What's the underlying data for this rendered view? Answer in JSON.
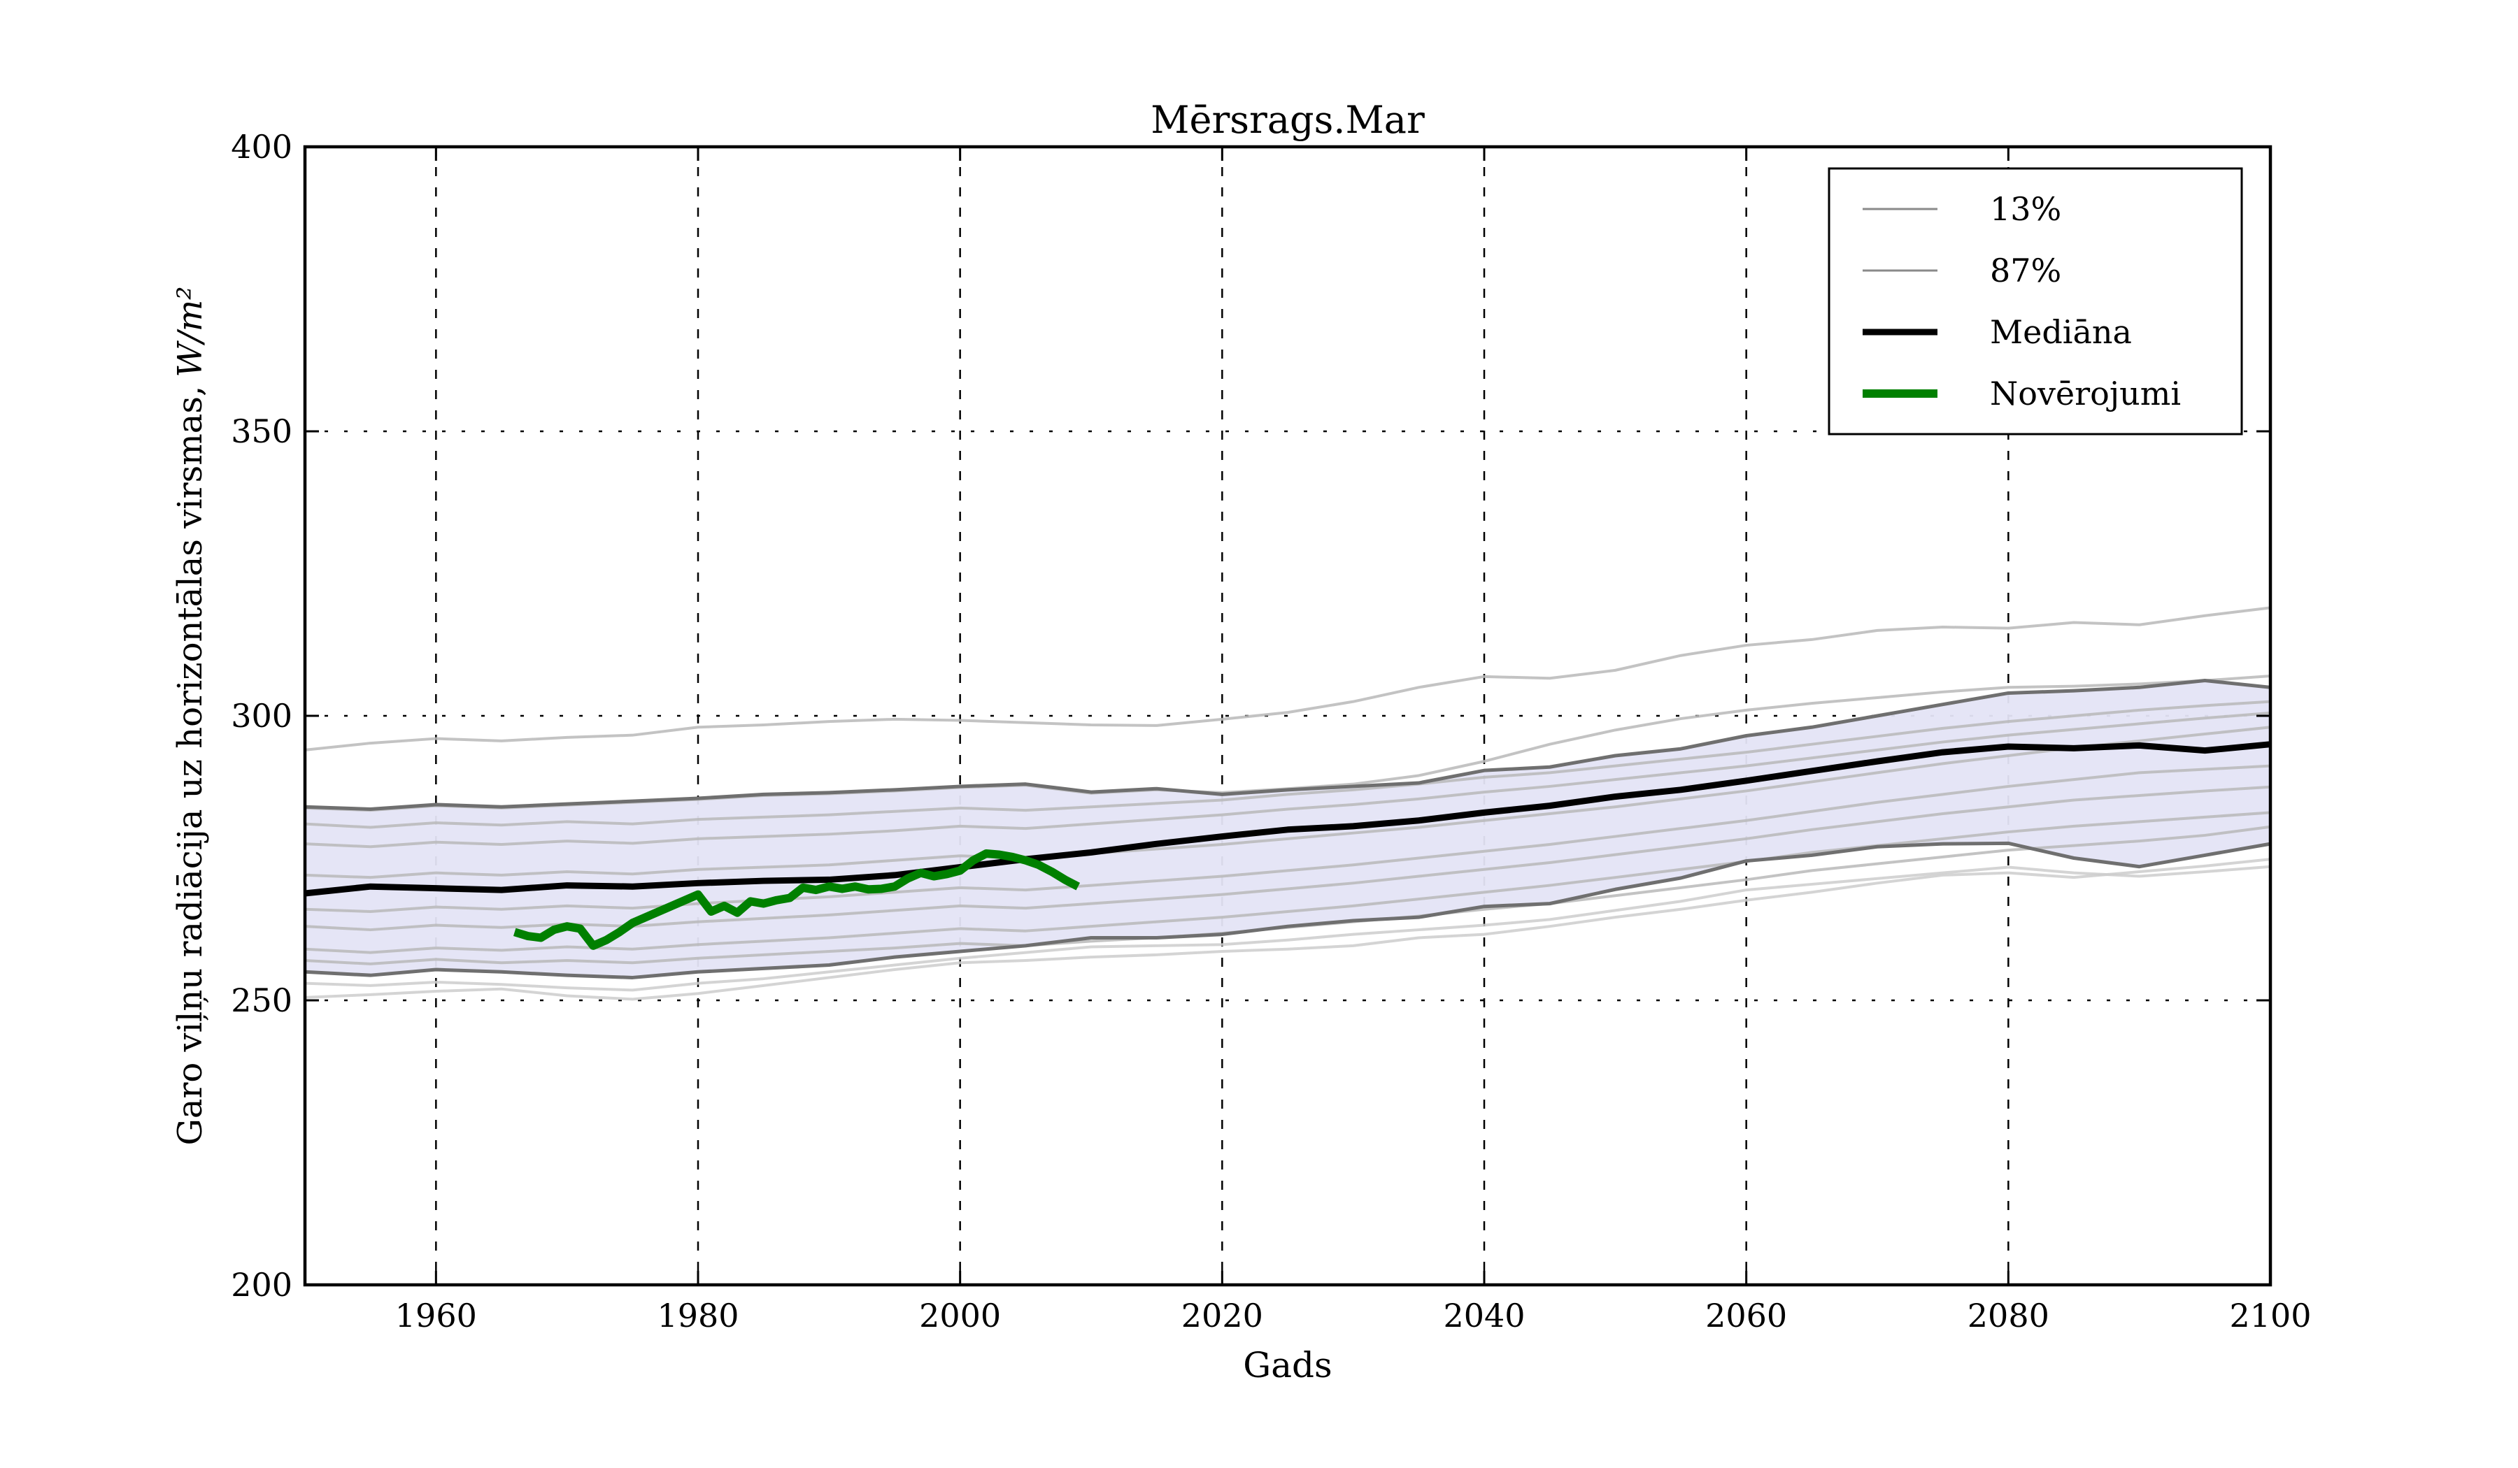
{
  "page": {
    "background": "#ffffff"
  },
  "chart_data": {
    "type": "line",
    "title": "Mērsrags.Mar",
    "xlabel": "Gads",
    "ylabel": "Garo viļņu radiācija uz horizontālas virsmas,",
    "ylabel_math": "W/m²",
    "xlim": [
      1950,
      2100
    ],
    "ylim": [
      200,
      400
    ],
    "x_ticks": [
      1960,
      1980,
      2000,
      2020,
      2040,
      2060,
      2080,
      2100
    ],
    "y_ticks": [
      200,
      250,
      300,
      350,
      400
    ],
    "grid": true,
    "legend_position": "upper right",
    "colors": {
      "band_fill": "#e4e4f6",
      "band_edge": "#6f6f6f",
      "ensemble": "#b9b9b9",
      "ensemble_light": "#cccccc",
      "median": "#000000",
      "observations": "#008000",
      "legend_percentile": "#8a8a8a",
      "grid_line": "#000000",
      "axis": "#000000"
    },
    "model_years": [
      1950,
      1955,
      1960,
      1965,
      1970,
      1975,
      1980,
      1985,
      1990,
      1995,
      2000,
      2005,
      2010,
      2015,
      2020,
      2025,
      2030,
      2035,
      2040,
      2045,
      2050,
      2055,
      2060,
      2065,
      2070,
      2075,
      2080,
      2085,
      2090,
      2095,
      2100
    ],
    "percentile_87": [
      284.0,
      283.6,
      284.4,
      284.0,
      284.5,
      285.0,
      285.5,
      286.2,
      286.5,
      287.0,
      287.6,
      288.0,
      286.6,
      287.2,
      286.2,
      287.0,
      287.6,
      288.2,
      290.4,
      291.0,
      293.0,
      294.2,
      296.5,
      298.0,
      300.0,
      302.0,
      304.0,
      304.4,
      305.0,
      306.2,
      305.0
    ],
    "percentile_13": [
      255.0,
      254.4,
      255.4,
      255.0,
      254.4,
      254.0,
      255.0,
      255.6,
      256.2,
      257.6,
      258.6,
      259.6,
      261.0,
      261.0,
      261.6,
      263.0,
      264.0,
      264.6,
      266.5,
      267.0,
      269.5,
      271.5,
      274.5,
      275.5,
      277.0,
      277.5,
      277.6,
      275.0,
      273.5,
      275.5,
      277.5
    ],
    "median": [
      268.8,
      270.0,
      269.7,
      269.4,
      270.2,
      270.0,
      270.6,
      271.0,
      271.2,
      272.0,
      273.4,
      274.8,
      276.0,
      277.5,
      278.8,
      280.0,
      280.6,
      281.6,
      283.0,
      284.2,
      285.8,
      287.0,
      288.6,
      290.3,
      292.0,
      293.6,
      294.6,
      294.3,
      294.8,
      293.9,
      295.0
    ],
    "ensemble_members": [
      {
        "name": "member-top",
        "shade": "ensemble",
        "values": [
          294.0,
          295.2,
          296.0,
          295.6,
          296.2,
          296.6,
          298.0,
          298.4,
          299.0,
          299.4,
          299.2,
          298.8,
          298.4,
          298.3,
          299.4,
          300.6,
          302.5,
          305.0,
          306.9,
          306.6,
          308.0,
          310.6,
          312.4,
          313.4,
          315.0,
          315.6,
          315.4,
          316.4,
          316.0,
          317.6,
          319.0
        ]
      },
      {
        "name": "member-upper-edge",
        "shade": "ensemble",
        "values": [
          283.8,
          283.4,
          284.2,
          283.8,
          284.3,
          284.8,
          285.3,
          286.0,
          286.3,
          286.8,
          287.4,
          287.8,
          286.4,
          287.0,
          286.5,
          287.2,
          288.0,
          289.5,
          292.0,
          295.0,
          297.5,
          299.5,
          301.0,
          302.2,
          303.2,
          304.2,
          305.0,
          305.2,
          305.6,
          306.2,
          307.0
        ]
      },
      {
        "name": "member-1",
        "shade": "ensemble",
        "values": [
          281.0,
          280.4,
          281.2,
          280.8,
          281.4,
          281.0,
          281.8,
          282.2,
          282.6,
          283.2,
          283.8,
          283.4,
          284.0,
          284.6,
          285.2,
          286.2,
          287.0,
          288.0,
          289.2,
          290.0,
          291.2,
          292.4,
          293.6,
          295.0,
          296.4,
          297.8,
          299.0,
          300.0,
          301.0,
          301.8,
          302.5
        ]
      },
      {
        "name": "member-2",
        "shade": "ensemble",
        "values": [
          277.5,
          277.0,
          277.8,
          277.4,
          278.0,
          277.6,
          278.4,
          278.8,
          279.2,
          279.8,
          280.6,
          280.2,
          281.0,
          281.8,
          282.6,
          283.6,
          284.4,
          285.4,
          286.6,
          287.6,
          288.8,
          290.0,
          291.2,
          292.6,
          294.0,
          295.4,
          296.6,
          297.6,
          298.6,
          299.6,
          300.5
        ]
      },
      {
        "name": "member-3",
        "shade": "ensemble",
        "values": [
          272.0,
          271.6,
          272.4,
          272.0,
          272.6,
          272.2,
          273.0,
          273.4,
          273.8,
          274.6,
          275.4,
          275.0,
          275.8,
          276.6,
          277.4,
          278.4,
          279.4,
          280.4,
          281.6,
          282.8,
          284.0,
          285.4,
          286.8,
          288.4,
          290.0,
          291.6,
          293.0,
          294.4,
          295.6,
          296.8,
          298.0
        ]
      },
      {
        "name": "member-4",
        "shade": "ensemble",
        "values": [
          266.0,
          265.6,
          266.4,
          266.0,
          266.6,
          266.2,
          267.0,
          267.6,
          268.2,
          269.0,
          269.8,
          269.4,
          270.2,
          271.0,
          271.8,
          272.8,
          273.8,
          275.0,
          276.2,
          277.4,
          278.8,
          280.2,
          281.6,
          283.2,
          284.8,
          286.2,
          287.6,
          288.8,
          290.0,
          290.6,
          291.2
        ]
      },
      {
        "name": "member-5",
        "shade": "ensemble",
        "values": [
          263.0,
          262.4,
          263.2,
          262.8,
          263.4,
          263.0,
          263.8,
          264.4,
          265.0,
          265.8,
          266.6,
          266.2,
          267.0,
          267.8,
          268.6,
          269.6,
          270.6,
          271.8,
          273.0,
          274.2,
          275.6,
          277.0,
          278.4,
          280.0,
          281.4,
          282.8,
          284.0,
          285.2,
          286.0,
          286.8,
          287.5
        ]
      },
      {
        "name": "member-6",
        "shade": "ensemble",
        "values": [
          259.0,
          258.4,
          259.2,
          258.8,
          259.4,
          259.0,
          259.8,
          260.4,
          261.0,
          261.8,
          262.6,
          262.2,
          263.0,
          263.8,
          264.6,
          265.6,
          266.6,
          267.8,
          269.0,
          270.2,
          271.6,
          273.0,
          274.4,
          276.0,
          277.2,
          278.4,
          279.6,
          280.6,
          281.4,
          282.2,
          283.0
        ]
      },
      {
        "name": "member-7",
        "shade": "ensemble",
        "values": [
          257.0,
          256.4,
          257.2,
          256.6,
          257.0,
          256.6,
          257.4,
          258.0,
          258.6,
          259.2,
          260.0,
          259.6,
          260.4,
          261.0,
          261.8,
          262.8,
          263.8,
          264.8,
          266.0,
          267.0,
          268.4,
          269.8,
          271.2,
          272.8,
          274.0,
          275.2,
          276.4,
          277.2,
          278.0,
          279.0,
          280.5
        ]
      },
      {
        "name": "member-low-1",
        "shade": "ensemble_light",
        "values": [
          253.0,
          252.6,
          253.2,
          252.8,
          252.2,
          251.8,
          253.0,
          253.8,
          255.0,
          256.2,
          257.4,
          258.4,
          259.4,
          259.6,
          259.8,
          260.6,
          261.6,
          262.4,
          263.2,
          264.2,
          265.8,
          267.4,
          269.4,
          270.4,
          271.4,
          272.4,
          273.4,
          272.4,
          271.8,
          272.6,
          273.5
        ]
      },
      {
        "name": "member-low-2",
        "shade": "ensemble_light",
        "values": [
          250.5,
          251.0,
          251.6,
          252.0,
          250.8,
          250.2,
          251.2,
          252.6,
          254.0,
          255.4,
          256.6,
          257.0,
          257.6,
          258.0,
          258.6,
          259.0,
          259.6,
          261.0,
          261.6,
          263.0,
          264.6,
          266.0,
          267.6,
          269.0,
          270.6,
          272.0,
          272.4,
          271.6,
          272.6,
          273.6,
          274.8
        ]
      }
    ],
    "observations": {
      "years": [
        1966,
        1967,
        1968,
        1969,
        1970,
        1971,
        1972,
        1973,
        1974,
        1975,
        1976,
        1977,
        1978,
        1979,
        1980,
        1981,
        1982,
        1983,
        1984,
        1985,
        1986,
        1987,
        1988,
        1989,
        1990,
        1991,
        1992,
        1993,
        1994,
        1995,
        1996,
        1997,
        1998,
        1999,
        2000,
        2001,
        2002,
        2003,
        2004,
        2005,
        2006,
        2007,
        2008,
        2009
      ],
      "values": [
        262.0,
        261.3,
        261.0,
        262.4,
        263.0,
        262.6,
        259.6,
        260.6,
        262.0,
        263.6,
        264.6,
        265.6,
        266.6,
        267.6,
        268.6,
        265.6,
        266.6,
        265.4,
        267.4,
        267.0,
        267.6,
        268.0,
        269.8,
        269.4,
        270.0,
        269.6,
        270.0,
        269.5,
        269.6,
        270.0,
        271.4,
        272.4,
        271.8,
        272.2,
        272.8,
        274.6,
        275.8,
        275.6,
        275.2,
        274.6,
        273.8,
        272.6,
        271.2,
        270.0
      ]
    },
    "legend": [
      {
        "label": "13%",
        "color": "#8a8a8a",
        "width": 3
      },
      {
        "label": "87%",
        "color": "#8a8a8a",
        "width": 3
      },
      {
        "label": "Mediāna",
        "color": "#000000",
        "width": 9
      },
      {
        "label": "Novērojumi",
        "color": "#008000",
        "width": 12
      }
    ]
  }
}
